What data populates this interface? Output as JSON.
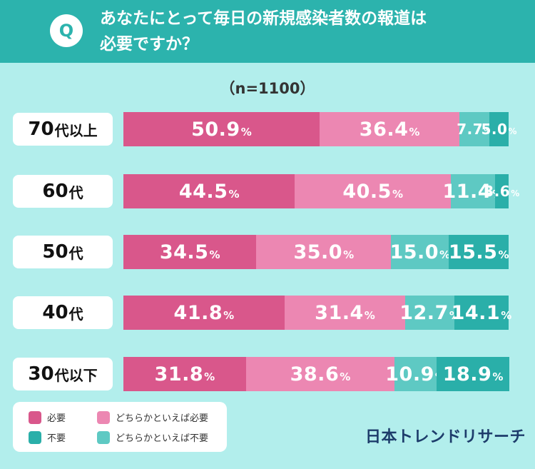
{
  "header": {
    "badge": "Q",
    "title_line1": "あなたにとって毎日の新規感染者数の報道は",
    "title_line2": "必要ですか？"
  },
  "sample": "（n=1100）",
  "legend": {
    "items": [
      {
        "label": "必要",
        "color": "#d9578b"
      },
      {
        "label": "どちらかといえば必要",
        "color": "#ec87b2"
      },
      {
        "label": "不要",
        "color": "#2aafa9"
      },
      {
        "label": "どちらかといえば不要",
        "color": "#5ec9c3"
      }
    ]
  },
  "brand": "日本トレンドリサーチ",
  "chart_data": {
    "type": "bar",
    "orientation": "horizontal",
    "stacked": true,
    "percent_sign": "%",
    "categories": [
      "70代以上",
      "60代",
      "50代",
      "40代",
      "30代以下"
    ],
    "category_parts": [
      {
        "num": "70",
        "suffix": "代以上"
      },
      {
        "num": "60",
        "suffix": "代"
      },
      {
        "num": "50",
        "suffix": "代"
      },
      {
        "num": "40",
        "suffix": "代"
      },
      {
        "num": "30",
        "suffix": "代以下"
      }
    ],
    "series": [
      {
        "name": "必要",
        "color": "#d9578b",
        "values": [
          50.9,
          44.5,
          34.5,
          41.8,
          31.8
        ]
      },
      {
        "name": "どちらかといえば必要",
        "color": "#ec87b2",
        "values": [
          36.4,
          40.5,
          35.0,
          31.4,
          38.6
        ]
      },
      {
        "name": "どちらかといえば不要",
        "color": "#5ec9c3",
        "values": [
          7.7,
          11.4,
          15.0,
          12.7,
          10.9
        ]
      },
      {
        "name": "不要",
        "color": "#2aafa9",
        "values": [
          5.0,
          3.6,
          15.5,
          14.1,
          18.9
        ]
      }
    ],
    "labels": [
      [
        "50.9",
        "36.4",
        "7.7",
        "5.0"
      ],
      [
        "44.5",
        "40.5",
        "11.4",
        "3.6"
      ],
      [
        "34.5",
        "35.0",
        "15.0",
        "15.5"
      ],
      [
        "41.8",
        "31.4",
        "12.7",
        "14.1"
      ],
      [
        "31.8",
        "38.6",
        "10.9",
        "18.9"
      ]
    ],
    "xlim": [
      0,
      100
    ],
    "legend_position": "bottom-left"
  }
}
